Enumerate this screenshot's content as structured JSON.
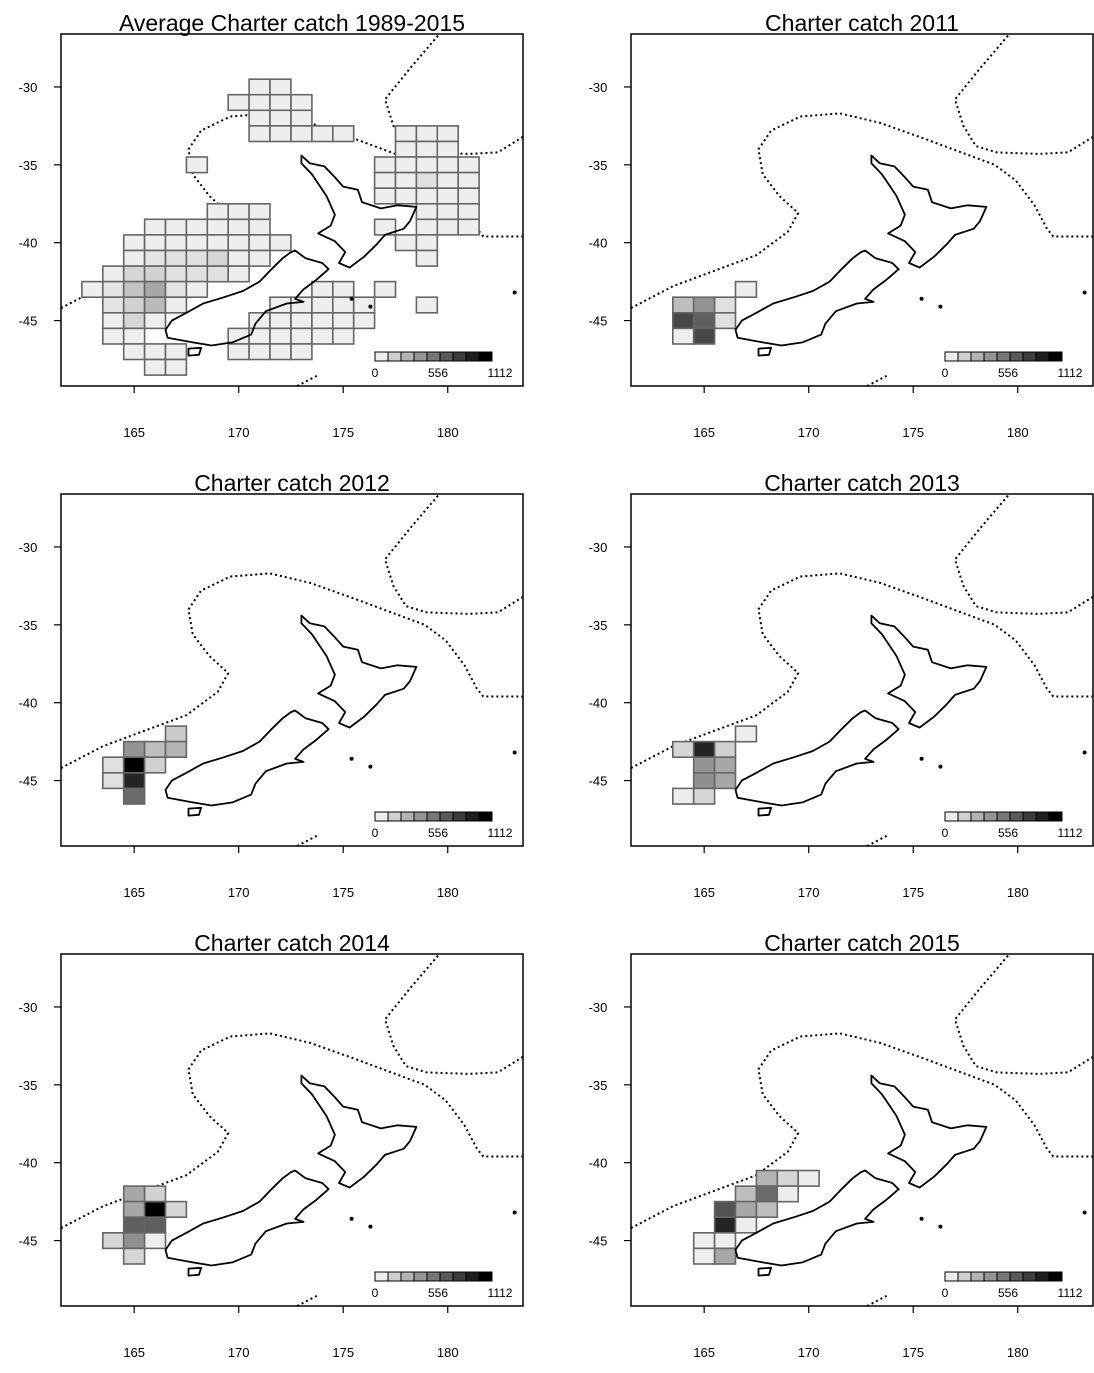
{
  "figure": {
    "panels": [
      {
        "title": "Average Charter catch 1989-2015",
        "cells": [
          [
            171,
            -30,
            0
          ],
          [
            172,
            -30,
            0
          ],
          [
            170,
            -31,
            0
          ],
          [
            171,
            -31,
            0
          ],
          [
            172,
            -31,
            0
          ],
          [
            173,
            -31,
            0
          ],
          [
            171,
            -32,
            0
          ],
          [
            172,
            -32,
            0
          ],
          [
            173,
            -32,
            0
          ],
          [
            171,
            -33,
            0
          ],
          [
            172,
            -33,
            0
          ],
          [
            173,
            -33,
            0
          ],
          [
            174,
            -33,
            0
          ],
          [
            175,
            -33,
            0
          ],
          [
            178,
            -33,
            0
          ],
          [
            179,
            -33,
            0
          ],
          [
            180,
            -33,
            0
          ],
          [
            178,
            -34,
            0
          ],
          [
            179,
            -34,
            0
          ],
          [
            180,
            -34,
            0
          ],
          [
            168,
            -35,
            0
          ],
          [
            177,
            -35,
            0
          ],
          [
            178,
            -35,
            0
          ],
          [
            179,
            -35,
            0
          ],
          [
            180,
            -35,
            0
          ],
          [
            181,
            -35,
            0
          ],
          [
            177,
            -36,
            0
          ],
          [
            178,
            -36,
            0
          ],
          [
            179,
            -36,
            0.06
          ],
          [
            180,
            -36,
            0
          ],
          [
            181,
            -36,
            0
          ],
          [
            177,
            -37,
            0
          ],
          [
            178,
            -37,
            0
          ],
          [
            179,
            -37,
            0
          ],
          [
            180,
            -37,
            0
          ],
          [
            181,
            -37,
            0
          ],
          [
            169,
            -38,
            0
          ],
          [
            170,
            -38,
            0
          ],
          [
            171,
            -38,
            0
          ],
          [
            179,
            -38,
            0
          ],
          [
            180,
            -38,
            0
          ],
          [
            181,
            -38,
            0
          ],
          [
            166,
            -39,
            0
          ],
          [
            167,
            -39,
            0
          ],
          [
            168,
            -39,
            0
          ],
          [
            169,
            -39,
            0
          ],
          [
            170,
            -39,
            0
          ],
          [
            171,
            -39,
            0
          ],
          [
            177,
            -39,
            0
          ],
          [
            179,
            -39,
            0
          ],
          [
            180,
            -39,
            0
          ],
          [
            181,
            -39,
            0
          ],
          [
            165,
            -40,
            0
          ],
          [
            166,
            -40,
            0
          ],
          [
            167,
            -40,
            0
          ],
          [
            168,
            -40,
            0
          ],
          [
            169,
            -40,
            0
          ],
          [
            170,
            -40,
            0
          ],
          [
            171,
            -40,
            0
          ],
          [
            172,
            -40,
            0
          ],
          [
            178,
            -40,
            0
          ],
          [
            179,
            -40,
            0
          ],
          [
            165,
            -41,
            0
          ],
          [
            166,
            -41,
            0.04
          ],
          [
            167,
            -41,
            0.06
          ],
          [
            168,
            -41,
            0.06
          ],
          [
            169,
            -41,
            0.1
          ],
          [
            170,
            -41,
            0
          ],
          [
            171,
            -41,
            0
          ],
          [
            179,
            -41,
            0
          ],
          [
            164,
            -42,
            0
          ],
          [
            165,
            -42,
            0.1
          ],
          [
            166,
            -42,
            0.12
          ],
          [
            167,
            -42,
            0.06
          ],
          [
            168,
            -42,
            0.06
          ],
          [
            169,
            -42,
            0.06
          ],
          [
            170,
            -42,
            0
          ],
          [
            163,
            -43,
            0
          ],
          [
            164,
            -43,
            0.04
          ],
          [
            165,
            -43,
            0.18
          ],
          [
            166,
            -43,
            0.3
          ],
          [
            167,
            -43,
            0.04
          ],
          [
            168,
            -43,
            0
          ],
          [
            174,
            -43,
            0
          ],
          [
            175,
            -43,
            0
          ],
          [
            177,
            -43,
            0
          ],
          [
            164,
            -44,
            0.04
          ],
          [
            165,
            -44,
            0.12
          ],
          [
            166,
            -44,
            0.22
          ],
          [
            167,
            -44,
            0
          ],
          [
            172,
            -44,
            0
          ],
          [
            173,
            -44,
            0
          ],
          [
            174,
            -44,
            0
          ],
          [
            175,
            -44,
            0
          ],
          [
            176,
            -44,
            0
          ],
          [
            179,
            -44,
            0
          ],
          [
            164,
            -45,
            0
          ],
          [
            165,
            -45,
            0.1
          ],
          [
            166,
            -45,
            0
          ],
          [
            171,
            -45,
            0
          ],
          [
            172,
            -45,
            0
          ],
          [
            173,
            -45,
            0
          ],
          [
            174,
            -45,
            0
          ],
          [
            175,
            -45,
            0
          ],
          [
            176,
            -45,
            0
          ],
          [
            164,
            -46,
            0
          ],
          [
            165,
            -46,
            0
          ],
          [
            170,
            -46,
            0
          ],
          [
            171,
            -46,
            0
          ],
          [
            172,
            -46,
            0
          ],
          [
            173,
            -46,
            0
          ],
          [
            174,
            -46,
            0
          ],
          [
            175,
            -46,
            0
          ],
          [
            165,
            -47,
            0
          ],
          [
            166,
            -47,
            0
          ],
          [
            167,
            -47,
            0
          ],
          [
            170,
            -47,
            0
          ],
          [
            171,
            -47,
            0
          ],
          [
            172,
            -47,
            0
          ],
          [
            173,
            -47,
            0
          ],
          [
            166,
            -48,
            0
          ],
          [
            167,
            -48,
            0
          ]
        ]
      },
      {
        "title": "Charter catch 2011",
        "cells": [
          [
            167,
            -43,
            0
          ],
          [
            164,
            -44,
            0.2
          ],
          [
            165,
            -44,
            0.38
          ],
          [
            166,
            -44,
            0.06
          ],
          [
            164,
            -45,
            0.7
          ],
          [
            165,
            -45,
            0.6
          ],
          [
            166,
            -45,
            0.06
          ],
          [
            164,
            -46,
            0
          ],
          [
            165,
            -46,
            0.7
          ]
        ]
      },
      {
        "title": "Charter catch 2012",
        "cells": [
          [
            167,
            -42,
            0.15
          ],
          [
            165,
            -43,
            0.38
          ],
          [
            166,
            -43,
            0.2
          ],
          [
            167,
            -43,
            0.25
          ],
          [
            164,
            -44,
            0.06
          ],
          [
            165,
            -44,
            1.0
          ],
          [
            166,
            -44,
            0.12
          ],
          [
            164,
            -45,
            0.06
          ],
          [
            165,
            -45,
            0.85
          ],
          [
            165,
            -46,
            0.55
          ]
        ]
      },
      {
        "title": "Charter catch 2013",
        "cells": [
          [
            167,
            -42,
            0
          ],
          [
            164,
            -43,
            0.1
          ],
          [
            165,
            -43,
            0.85
          ],
          [
            166,
            -43,
            0.12
          ],
          [
            165,
            -44,
            0.38
          ],
          [
            166,
            -44,
            0.3
          ],
          [
            165,
            -45,
            0.4
          ],
          [
            166,
            -45,
            0.3
          ],
          [
            164,
            -46,
            0
          ],
          [
            165,
            -46,
            0.1
          ]
        ]
      },
      {
        "title": "Charter catch 2014",
        "cells": [
          [
            165,
            -42,
            0.3
          ],
          [
            166,
            -42,
            0.12
          ],
          [
            165,
            -43,
            0.3
          ],
          [
            166,
            -43,
            1.0
          ],
          [
            167,
            -43,
            0.1
          ],
          [
            165,
            -44,
            0.6
          ],
          [
            166,
            -44,
            0.6
          ],
          [
            164,
            -45,
            0.1
          ],
          [
            165,
            -45,
            0.4
          ],
          [
            166,
            -45,
            0
          ],
          [
            165,
            -46,
            0.1
          ]
        ]
      },
      {
        "title": "Charter catch 2015",
        "cells": [
          [
            168,
            -41,
            0.25
          ],
          [
            169,
            -41,
            0.1
          ],
          [
            170,
            -41,
            0
          ],
          [
            167,
            -42,
            0.2
          ],
          [
            168,
            -42,
            0.55
          ],
          [
            169,
            -42,
            0
          ],
          [
            166,
            -43,
            0.65
          ],
          [
            167,
            -43,
            0.3
          ],
          [
            168,
            -43,
            0.2
          ],
          [
            166,
            -44,
            0.85
          ],
          [
            167,
            -44,
            0
          ],
          [
            165,
            -45,
            0
          ],
          [
            166,
            -45,
            0
          ],
          [
            165,
            -46,
            0
          ],
          [
            166,
            -46,
            0.3
          ]
        ]
      }
    ],
    "axes": {
      "xlim": [
        161.5,
        183.6
      ],
      "ylim": [
        -49.2,
        -26.6
      ],
      "x_ticks": [
        "165",
        "170",
        "175",
        "180"
      ],
      "y_ticks": [
        "-30",
        "-35",
        "-40",
        "-45"
      ]
    },
    "legend": {
      "min": "0",
      "mid": "556",
      "max": "1112",
      "levels": 9
    }
  }
}
